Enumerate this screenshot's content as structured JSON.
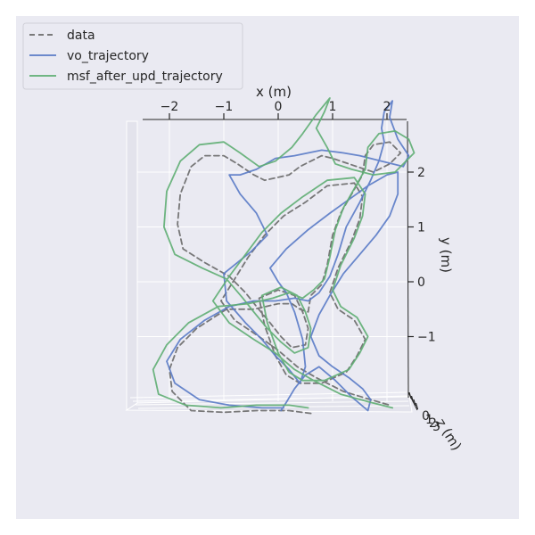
{
  "chart_data": {
    "type": "line",
    "projection": "3d",
    "title": "",
    "xlabel": "x (m)",
    "ylabel": "y (m)",
    "zlabel": "z (m)",
    "x_ticks": [
      "−2",
      "−1",
      "0",
      "1",
      "2"
    ],
    "y_ticks": [
      "2",
      "1",
      "0",
      "−1"
    ],
    "z_ticks": [
      "0",
      "1",
      "2",
      "3"
    ],
    "grid": true,
    "legend_position": "top-left",
    "series": [
      {
        "name": "data",
        "color": "#6a6a6a",
        "dash": "6,4",
        "points": [
          [
            0.6,
            -2.4
          ],
          [
            0.2,
            -2.35
          ],
          [
            -0.4,
            -2.35
          ],
          [
            -1.0,
            -2.38
          ],
          [
            -1.6,
            -2.35
          ],
          [
            -1.95,
            -2.0
          ],
          [
            -2.0,
            -1.6
          ],
          [
            -1.85,
            -1.2
          ],
          [
            -1.5,
            -0.85
          ],
          [
            -0.95,
            -0.5
          ],
          [
            -0.45,
            -0.5
          ],
          [
            0.0,
            -0.4
          ],
          [
            0.25,
            -0.4
          ],
          [
            0.4,
            -0.5
          ],
          [
            0.55,
            -0.55
          ],
          [
            0.6,
            -0.25
          ],
          [
            0.8,
            -0.05
          ],
          [
            0.9,
            0.3
          ],
          [
            1.0,
            0.85
          ],
          [
            1.15,
            1.25
          ],
          [
            1.35,
            1.6
          ],
          [
            1.55,
            1.95
          ],
          [
            1.6,
            2.3
          ],
          [
            1.75,
            2.5
          ],
          [
            2.05,
            2.55
          ],
          [
            2.25,
            2.35
          ],
          [
            2.05,
            2.15
          ],
          [
            1.75,
            2.0
          ],
          [
            1.3,
            2.15
          ],
          [
            1.0,
            2.25
          ],
          [
            0.8,
            2.3
          ],
          [
            0.4,
            2.1
          ],
          [
            0.2,
            1.95
          ],
          [
            -0.25,
            1.85
          ],
          [
            -0.45,
            1.95
          ],
          [
            -0.75,
            2.15
          ],
          [
            -1.0,
            2.3
          ],
          [
            -1.35,
            2.3
          ],
          [
            -1.6,
            2.1
          ],
          [
            -1.8,
            1.6
          ],
          [
            -1.85,
            1.05
          ],
          [
            -1.75,
            0.6
          ],
          [
            -1.35,
            0.35
          ],
          [
            -0.9,
            0.1
          ],
          [
            -0.6,
            -0.2
          ],
          [
            -0.4,
            -0.45
          ],
          [
            -0.15,
            -0.75
          ],
          [
            0.05,
            -1.0
          ],
          [
            0.25,
            -1.2
          ],
          [
            0.5,
            -1.15
          ],
          [
            0.55,
            -0.85
          ],
          [
            0.45,
            -0.55
          ],
          [
            0.3,
            -0.25
          ],
          [
            0.0,
            -0.15
          ],
          [
            -0.35,
            -0.3
          ],
          [
            -0.25,
            -0.8
          ],
          [
            -0.05,
            -1.35
          ],
          [
            0.15,
            -1.7
          ],
          [
            0.4,
            -1.85
          ],
          [
            0.8,
            -1.85
          ],
          [
            1.25,
            -1.65
          ],
          [
            1.45,
            -1.35
          ],
          [
            1.6,
            -1.05
          ],
          [
            1.4,
            -0.7
          ],
          [
            1.1,
            -0.5
          ],
          [
            0.95,
            -0.2
          ],
          [
            1.1,
            0.25
          ],
          [
            1.35,
            0.75
          ],
          [
            1.5,
            1.15
          ],
          [
            1.55,
            1.55
          ],
          [
            1.4,
            1.8
          ],
          [
            0.9,
            1.75
          ],
          [
            0.5,
            1.45
          ],
          [
            0.1,
            1.2
          ],
          [
            -0.25,
            0.85
          ],
          [
            -0.55,
            0.45
          ],
          [
            -0.8,
            0.05
          ],
          [
            -1.05,
            -0.35
          ],
          [
            -0.8,
            -0.7
          ],
          [
            -0.35,
            -1.0
          ],
          [
            0.0,
            -1.25
          ],
          [
            0.35,
            -1.55
          ],
          [
            0.7,
            -1.75
          ],
          [
            1.2,
            -2.0
          ],
          [
            1.7,
            -2.15
          ],
          [
            2.05,
            -2.25
          ]
        ]
      },
      {
        "name": "vo_trajectory",
        "color": "#5a7bc6",
        "dash": "",
        "points": [
          [
            0.1,
            -2.3
          ],
          [
            -0.3,
            -2.3
          ],
          [
            -0.9,
            -2.25
          ],
          [
            -1.45,
            -2.15
          ],
          [
            -1.9,
            -1.85
          ],
          [
            -2.05,
            -1.45
          ],
          [
            -1.8,
            -1.05
          ],
          [
            -1.35,
            -0.7
          ],
          [
            -0.9,
            -0.45
          ],
          [
            -0.45,
            -0.35
          ],
          [
            -0.05,
            -0.35
          ],
          [
            0.3,
            -0.3
          ],
          [
            0.55,
            -0.35
          ],
          [
            0.75,
            -0.2
          ],
          [
            0.95,
            0.1
          ],
          [
            1.1,
            0.5
          ],
          [
            1.25,
            1.0
          ],
          [
            1.5,
            1.45
          ],
          [
            1.7,
            1.85
          ],
          [
            1.85,
            2.2
          ],
          [
            1.95,
            2.55
          ],
          [
            1.9,
            2.8
          ],
          [
            1.95,
            3.1
          ],
          [
            2.1,
            3.3
          ],
          [
            2.05,
            3.0
          ],
          [
            2.2,
            2.6
          ],
          [
            2.4,
            2.3
          ],
          [
            2.3,
            2.1
          ],
          [
            1.9,
            2.2
          ],
          [
            1.5,
            2.3
          ],
          [
            1.2,
            2.35
          ],
          [
            0.8,
            2.4
          ],
          [
            0.3,
            2.3
          ],
          [
            -0.05,
            2.25
          ],
          [
            -0.4,
            2.05
          ],
          [
            -0.7,
            1.95
          ],
          [
            -0.9,
            1.95
          ],
          [
            -0.7,
            1.6
          ],
          [
            -0.4,
            1.25
          ],
          [
            -0.2,
            0.85
          ],
          [
            -0.5,
            0.55
          ],
          [
            -1.0,
            0.15
          ],
          [
            -0.95,
            -0.35
          ],
          [
            -0.6,
            -0.75
          ],
          [
            -0.3,
            -1.05
          ],
          [
            -0.05,
            -1.35
          ],
          [
            0.2,
            -1.6
          ],
          [
            0.4,
            -1.85
          ],
          [
            0.5,
            -1.55
          ],
          [
            0.45,
            -1.05
          ],
          [
            0.3,
            -0.55
          ],
          [
            0.15,
            -0.2
          ],
          [
            0.0,
            0.0
          ],
          [
            -0.15,
            0.25
          ],
          [
            0.15,
            0.6
          ],
          [
            0.55,
            0.95
          ],
          [
            0.95,
            1.25
          ],
          [
            1.3,
            1.5
          ],
          [
            1.65,
            1.75
          ],
          [
            2.0,
            1.95
          ],
          [
            2.2,
            2.0
          ],
          [
            2.2,
            1.6
          ],
          [
            2.05,
            1.2
          ],
          [
            1.8,
            0.85
          ],
          [
            1.5,
            0.5
          ],
          [
            1.2,
            0.15
          ],
          [
            0.95,
            -0.25
          ],
          [
            0.75,
            -0.6
          ],
          [
            0.6,
            -1.0
          ],
          [
            0.75,
            -1.35
          ],
          [
            1.0,
            -1.55
          ],
          [
            1.3,
            -1.75
          ],
          [
            1.55,
            -1.95
          ],
          [
            1.7,
            -2.15
          ],
          [
            1.65,
            -2.35
          ],
          [
            1.35,
            -2.1
          ],
          [
            1.05,
            -1.8
          ],
          [
            0.75,
            -1.55
          ],
          [
            0.5,
            -1.7
          ],
          [
            0.3,
            -1.95
          ],
          [
            0.15,
            -2.2
          ],
          [
            0.05,
            -2.35
          ]
        ]
      },
      {
        "name": "msf_after_upd_trajectory",
        "color": "#5fae73",
        "dash": "",
        "points": [
          [
            0.55,
            -2.3
          ],
          [
            0.2,
            -2.25
          ],
          [
            -0.4,
            -2.25
          ],
          [
            -1.05,
            -2.3
          ],
          [
            -1.7,
            -2.25
          ],
          [
            -2.2,
            -2.05
          ],
          [
            -2.3,
            -1.6
          ],
          [
            -2.05,
            -1.15
          ],
          [
            -1.65,
            -0.75
          ],
          [
            -1.1,
            -0.45
          ],
          [
            -0.55,
            -0.4
          ],
          [
            -0.1,
            -0.3
          ],
          [
            0.2,
            -0.2
          ],
          [
            0.45,
            -0.3
          ],
          [
            0.65,
            -0.15
          ],
          [
            0.85,
            0.05
          ],
          [
            0.95,
            0.45
          ],
          [
            1.05,
            0.95
          ],
          [
            1.2,
            1.35
          ],
          [
            1.4,
            1.7
          ],
          [
            1.6,
            2.05
          ],
          [
            1.65,
            2.45
          ],
          [
            1.85,
            2.7
          ],
          [
            2.15,
            2.75
          ],
          [
            2.4,
            2.6
          ],
          [
            2.5,
            2.35
          ],
          [
            2.15,
            2.0
          ],
          [
            1.75,
            1.95
          ],
          [
            1.35,
            2.05
          ],
          [
            1.05,
            2.15
          ],
          [
            0.9,
            2.45
          ],
          [
            0.7,
            2.8
          ],
          [
            0.85,
            3.1
          ],
          [
            0.95,
            3.35
          ],
          [
            0.7,
            3.05
          ],
          [
            0.45,
            2.7
          ],
          [
            0.25,
            2.45
          ],
          [
            -0.05,
            2.2
          ],
          [
            -0.35,
            2.1
          ],
          [
            -0.7,
            2.35
          ],
          [
            -1.0,
            2.55
          ],
          [
            -1.45,
            2.5
          ],
          [
            -1.8,
            2.2
          ],
          [
            -2.05,
            1.65
          ],
          [
            -2.1,
            1.0
          ],
          [
            -1.9,
            0.5
          ],
          [
            -1.4,
            0.25
          ],
          [
            -0.95,
            0.05
          ],
          [
            -0.65,
            -0.3
          ],
          [
            -0.45,
            -0.55
          ],
          [
            -0.2,
            -0.85
          ],
          [
            0.05,
            -1.1
          ],
          [
            0.3,
            -1.3
          ],
          [
            0.55,
            -1.2
          ],
          [
            0.6,
            -0.85
          ],
          [
            0.5,
            -0.55
          ],
          [
            0.35,
            -0.25
          ],
          [
            0.05,
            -0.1
          ],
          [
            -0.3,
            -0.25
          ],
          [
            -0.2,
            -0.75
          ],
          [
            0.0,
            -1.3
          ],
          [
            0.2,
            -1.65
          ],
          [
            0.45,
            -1.8
          ],
          [
            0.85,
            -1.8
          ],
          [
            1.3,
            -1.6
          ],
          [
            1.5,
            -1.3
          ],
          [
            1.65,
            -1.0
          ],
          [
            1.45,
            -0.65
          ],
          [
            1.15,
            -0.45
          ],
          [
            1.0,
            -0.15
          ],
          [
            1.15,
            0.3
          ],
          [
            1.4,
            0.8
          ],
          [
            1.55,
            1.2
          ],
          [
            1.6,
            1.6
          ],
          [
            1.4,
            1.9
          ],
          [
            0.9,
            1.85
          ],
          [
            0.45,
            1.55
          ],
          [
            0.05,
            1.25
          ],
          [
            -0.3,
            0.9
          ],
          [
            -0.6,
            0.5
          ],
          [
            -0.9,
            0.1
          ],
          [
            -1.2,
            -0.35
          ],
          [
            -0.9,
            -0.75
          ],
          [
            -0.45,
            -1.05
          ],
          [
            -0.05,
            -1.3
          ],
          [
            0.3,
            -1.6
          ],
          [
            0.65,
            -1.8
          ],
          [
            1.15,
            -2.05
          ],
          [
            1.7,
            -2.2
          ],
          [
            2.1,
            -2.3
          ]
        ]
      }
    ]
  }
}
